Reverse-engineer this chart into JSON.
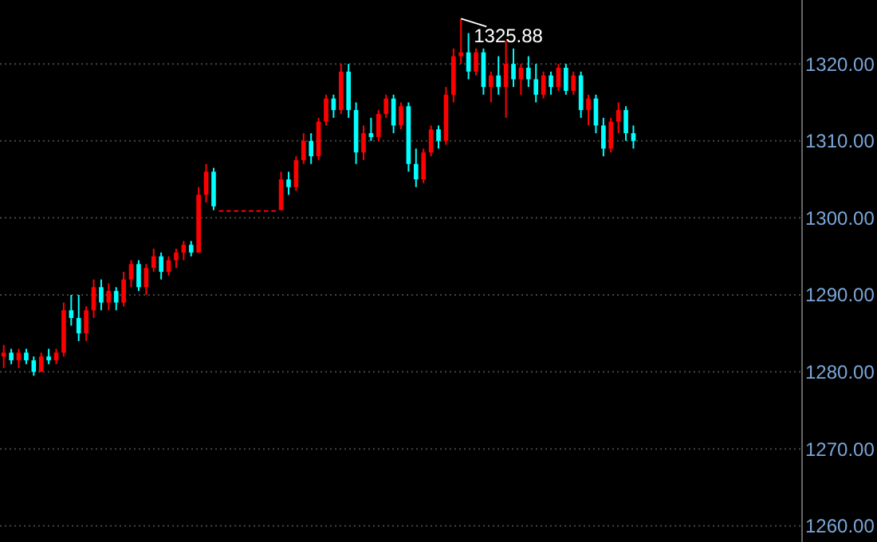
{
  "chart_data": {
    "type": "candlestick",
    "categories": [
      null,
      null,
      null,
      null,
      null,
      null,
      null,
      null,
      null,
      null,
      null,
      null,
      null,
      null,
      null,
      null,
      null,
      null,
      null,
      null,
      null,
      null,
      null,
      null,
      null,
      null,
      null,
      null,
      null,
      null,
      null,
      null,
      null,
      null,
      null,
      null,
      null,
      null,
      null,
      null,
      null,
      null,
      null,
      null,
      null,
      null,
      null,
      null,
      null,
      null,
      null,
      null,
      null,
      null,
      null,
      null,
      null,
      null,
      null,
      null,
      null,
      null,
      null,
      null,
      null,
      null,
      null,
      null,
      null,
      null,
      null,
      null,
      null,
      null,
      null,
      null,
      null,
      null,
      null,
      null,
      null,
      null,
      null,
      null,
      null,
      null,
      null,
      null,
      null,
      null,
      null,
      null,
      null,
      null,
      null,
      null,
      null,
      null,
      null,
      null,
      null,
      null,
      null,
      null,
      null,
      null,
      null
    ],
    "ohlc": [
      [
        1282,
        1283.5,
        1280.5,
        1282.5
      ],
      [
        1282.5,
        1283,
        1281,
        1281.5
      ],
      [
        1281.5,
        1283,
        1280.5,
        1282.5
      ],
      [
        1282.5,
        1283,
        1281,
        1281.5
      ],
      [
        1281.5,
        1282,
        1279.5,
        1280
      ],
      [
        1280,
        1282.5,
        1280,
        1282
      ],
      [
        1282,
        1283,
        1281,
        1281.5
      ],
      [
        1281.5,
        1283,
        1281,
        1282.5
      ],
      [
        1282.5,
        1289,
        1282,
        1288
      ],
      [
        1288,
        1290,
        1286,
        1287
      ],
      [
        1287,
        1290,
        1284,
        1285
      ],
      [
        1285,
        1288.5,
        1284,
        1288
      ],
      [
        1288,
        1292,
        1287,
        1291
      ],
      [
        1291,
        1292,
        1288,
        1289
      ],
      [
        1289,
        1291.5,
        1288,
        1290.5
      ],
      [
        1290.5,
        1291,
        1288,
        1289
      ],
      [
        1289,
        1293,
        1288.5,
        1292
      ],
      [
        1292,
        1294.5,
        1291,
        1294
      ],
      [
        1294,
        1294.5,
        1290.5,
        1291
      ],
      [
        1291,
        1294,
        1290,
        1293.5
      ],
      [
        1293.5,
        1296,
        1293,
        1295
      ],
      [
        1295,
        1295.5,
        1292,
        1293
      ],
      [
        1293,
        1295,
        1292.5,
        1294.5
      ],
      [
        1294.5,
        1296,
        1293.5,
        1295.5
      ],
      [
        1295.5,
        1297,
        1294.5,
        1296.5
      ],
      [
        1296.5,
        1297,
        1295,
        1295.5
      ],
      [
        1295.5,
        1304,
        1295.5,
        1303
      ],
      [
        1303,
        1307,
        1302,
        1306
      ],
      [
        1306,
        1306.5,
        1301,
        1301.5
      ],
      [
        1301,
        1301,
        1301,
        1301
      ],
      [
        1301,
        1301,
        1301,
        1301
      ],
      [
        1301,
        1301,
        1301,
        1301
      ],
      [
        1301,
        1301,
        1301,
        1301
      ],
      [
        1301,
        1301,
        1301,
        1301
      ],
      [
        1301,
        1301,
        1301,
        1301
      ],
      [
        1301,
        1301,
        1301,
        1301
      ],
      [
        1301,
        1301,
        1301,
        1301
      ],
      [
        1301,
        1306,
        1301,
        1305
      ],
      [
        1305,
        1306,
        1303,
        1304
      ],
      [
        1304,
        1308,
        1303.5,
        1307.5
      ],
      [
        1307.5,
        1311,
        1307,
        1310
      ],
      [
        1310,
        1311,
        1307,
        1308
      ],
      [
        1308,
        1313,
        1307.5,
        1312.5
      ],
      [
        1312.5,
        1316,
        1312,
        1315.5
      ],
      [
        1315.5,
        1316,
        1313,
        1314
      ],
      [
        1314,
        1320,
        1313.5,
        1319
      ],
      [
        1319,
        1320,
        1313,
        1314
      ],
      [
        1314,
        1315,
        1307,
        1308.5
      ],
      [
        1308.5,
        1312,
        1307.5,
        1311
      ],
      [
        1311,
        1313,
        1310,
        1310.5
      ],
      [
        1310.5,
        1314,
        1310,
        1313.5
      ],
      [
        1313.5,
        1316,
        1313,
        1315.5
      ],
      [
        1315.5,
        1316,
        1311,
        1312
      ],
      [
        1312,
        1315,
        1311.5,
        1314.5
      ],
      [
        1314.5,
        1315,
        1306,
        1307
      ],
      [
        1307,
        1309,
        1304,
        1305
      ],
      [
        1305,
        1309,
        1304.5,
        1308.5
      ],
      [
        1308.5,
        1312,
        1308,
        1311.5
      ],
      [
        1311.5,
        1312,
        1309,
        1310
      ],
      [
        1310,
        1317,
        1309.5,
        1316
      ],
      [
        1316,
        1322,
        1315,
        1321
      ],
      [
        1321,
        1325.88,
        1320,
        1321.5
      ],
      [
        1321.5,
        1324,
        1318,
        1319
      ],
      [
        1319,
        1322,
        1318.5,
        1321.5
      ],
      [
        1321.5,
        1322,
        1316,
        1317
      ],
      [
        1317,
        1319,
        1315,
        1318.5
      ],
      [
        1318.5,
        1321,
        1316,
        1317
      ],
      [
        1317,
        1323,
        1313,
        1320
      ],
      [
        1320,
        1322,
        1317,
        1318
      ],
      [
        1318,
        1320,
        1316,
        1319.5
      ],
      [
        1319.5,
        1321,
        1317,
        1318
      ],
      [
        1318,
        1320,
        1315,
        1316
      ],
      [
        1316,
        1319,
        1315.5,
        1318.5
      ],
      [
        1318.5,
        1319,
        1316,
        1317
      ],
      [
        1317,
        1320,
        1316.5,
        1319.5
      ],
      [
        1319.5,
        1320,
        1316,
        1316.5
      ],
      [
        1316.5,
        1319,
        1316,
        1318.5
      ],
      [
        1318.5,
        1319,
        1313,
        1314
      ],
      [
        1314,
        1316,
        1312,
        1315.5
      ],
      [
        1315.5,
        1316,
        1311,
        1312
      ],
      [
        1312,
        1313,
        1308,
        1309
      ],
      [
        1309,
        1313,
        1308.5,
        1312.5
      ],
      [
        1312.5,
        1315,
        1311,
        1314
      ],
      [
        1314,
        1314.5,
        1310,
        1311
      ],
      [
        1311,
        1312,
        1309,
        1310
      ],
      null,
      null,
      null,
      null,
      null,
      null,
      null,
      null,
      null,
      null,
      null,
      null,
      null,
      null,
      null,
      null,
      null,
      null,
      null,
      null,
      null,
      null
    ],
    "ylim": [
      1257.9,
      1328.3
    ],
    "yticks": [
      {
        "value": 1260,
        "label": "1260.00"
      },
      {
        "value": 1270,
        "label": "1270.00"
      },
      {
        "value": 1280,
        "label": "1280.00"
      },
      {
        "value": 1290,
        "label": "1290.00"
      },
      {
        "value": 1300,
        "label": "1300.00"
      },
      {
        "value": 1310,
        "label": "1310.00"
      },
      {
        "value": 1320,
        "label": "1320.00"
      }
    ],
    "grid": "y",
    "annotations": [
      "1325.88"
    ]
  }
}
